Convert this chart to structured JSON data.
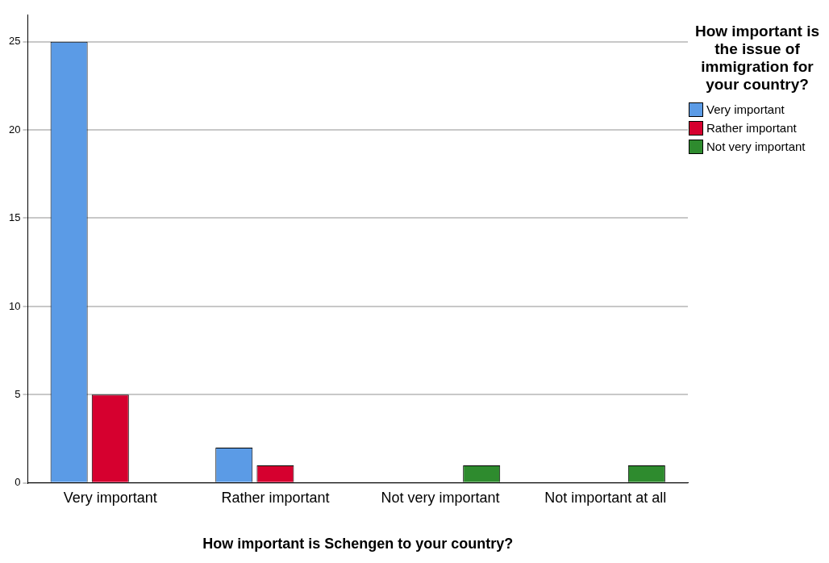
{
  "chart_data": {
    "type": "bar",
    "xlabel": "How important is Schengen to your country?",
    "legend_title": "How important is the issue of immigration for your country?",
    "categories": [
      "Very important",
      "Rather important",
      "Not very important",
      "Not important at all"
    ],
    "series": [
      {
        "name": "Very important",
        "color": "#5b9be6",
        "values": [
          25,
          2,
          0,
          0
        ]
      },
      {
        "name": "Rather important",
        "color": "#d6002f",
        "values": [
          5,
          1,
          0,
          0
        ]
      },
      {
        "name": "Not very important",
        "color": "#2e8b2e",
        "values": [
          0,
          0,
          1,
          1
        ]
      }
    ],
    "ylim": [
      0,
      26.5
    ],
    "yticks": [
      0,
      5,
      10,
      15,
      20,
      25
    ],
    "grid": "y",
    "legend": "top right"
  }
}
